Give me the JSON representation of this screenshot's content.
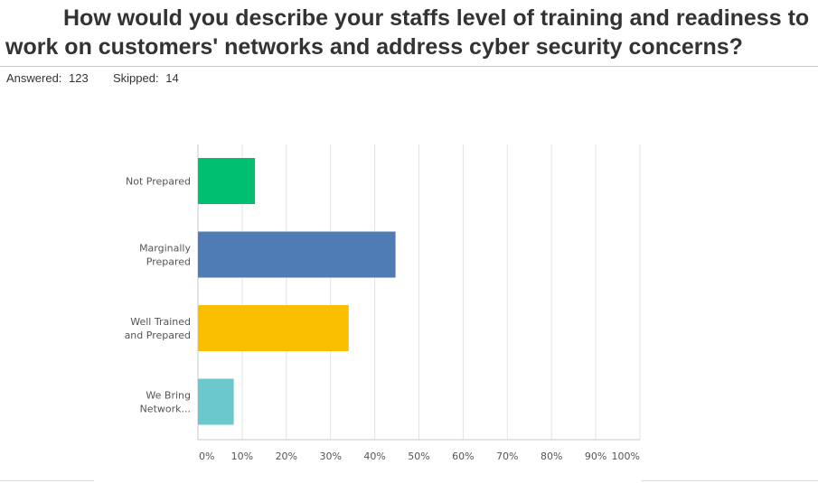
{
  "question": {
    "title": "How would you describe your staffs level of training and readiness to work on customers' networks and address cyber security concerns?",
    "answered_label": "Answered:",
    "answered_count": "123",
    "skipped_label": "Skipped:",
    "skipped_count": "14"
  },
  "chart_data": {
    "type": "bar",
    "orientation": "horizontal",
    "title": "",
    "xlabel": "",
    "ylabel": "",
    "categories": [
      [
        "Not Prepared"
      ],
      [
        "Marginally",
        "Prepared"
      ],
      [
        "Well Trained",
        "and Prepared"
      ],
      [
        "We Bring",
        "Network..."
      ]
    ],
    "values": [
      12.9,
      44.7,
      34.1,
      8.1
    ],
    "colors": [
      "#00bf6f",
      "#507cb6",
      "#f9be00",
      "#6bc8cd"
    ],
    "xlim": [
      0,
      100
    ],
    "x_ticks": [
      "0%",
      "10%",
      "20%",
      "30%",
      "40%",
      "50%",
      "60%",
      "70%",
      "80%",
      "90%",
      "100%"
    ],
    "grid": true,
    "legend": "none"
  }
}
